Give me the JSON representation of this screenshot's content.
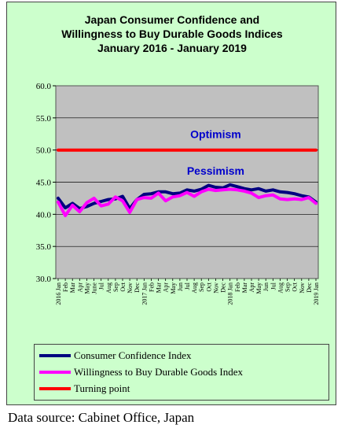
{
  "chart_data": {
    "type": "line",
    "title": [
      "Japan Consumer Confidence and",
      "Willingness to Buy Durable Goods Indices",
      "January 2016 - January 2019"
    ],
    "ylim": [
      30,
      60
    ],
    "yticks": [
      "30.0",
      "35.0",
      "40.0",
      "45.0",
      "50.0",
      "55.0",
      "60.0"
    ],
    "x": [
      "2016 Jan",
      "Feb",
      "Mar",
      "Apr",
      "May",
      "June",
      "Jul",
      "Aug",
      "Sep",
      "Oct",
      "Nov",
      "Dec",
      "2017 Jan",
      "Feb",
      "Mar",
      "Apr",
      "May",
      "Jun",
      "Jul",
      "Aug",
      "Sep",
      "Oct",
      "Nov",
      "Dec",
      "2018 Jan",
      "Feb",
      "Mar",
      "Apr",
      "May",
      "Jun",
      "Jul",
      "Aug",
      "Sep",
      "Oct",
      "Nov",
      "Dec",
      "2019 Jan"
    ],
    "series": [
      {
        "name": "Consumer Confidence Index",
        "color": "#000080",
        "values": [
          42.5,
          41.0,
          41.7,
          40.9,
          41.2,
          41.7,
          42.0,
          42.3,
          42.4,
          42.8,
          40.9,
          42.3,
          43.1,
          43.2,
          43.5,
          43.5,
          43.2,
          43.3,
          43.8,
          43.6,
          43.9,
          44.5,
          44.2,
          44.1,
          44.6,
          44.3,
          44.0,
          43.8,
          44.0,
          43.6,
          43.8,
          43.5,
          43.4,
          43.2,
          42.9,
          42.7,
          41.9
        ]
      },
      {
        "name": "Willingness to Buy Durable Goods Index",
        "color": "#ff00ff",
        "values": [
          41.9,
          39.8,
          41.4,
          40.4,
          41.8,
          42.5,
          41.3,
          41.6,
          42.7,
          42.1,
          40.3,
          42.3,
          42.6,
          42.5,
          43.3,
          42.1,
          42.7,
          42.9,
          43.4,
          42.8,
          43.5,
          43.9,
          43.7,
          43.8,
          43.9,
          43.8,
          43.6,
          43.3,
          42.6,
          42.9,
          43.0,
          42.4,
          42.3,
          42.4,
          42.3,
          42.6,
          41.7
        ]
      },
      {
        "name": "Turning point",
        "color": "#ff0000",
        "values": [
          50,
          50,
          50,
          50,
          50,
          50,
          50,
          50,
          50,
          50,
          50,
          50,
          50,
          50,
          50,
          50,
          50,
          50,
          50,
          50,
          50,
          50,
          50,
          50,
          50,
          50,
          50,
          50,
          50,
          50,
          50,
          50,
          50,
          50,
          50,
          50,
          50
        ]
      }
    ],
    "annotations": [
      {
        "text": "Optimism",
        "x_index": 22,
        "y": 52.5,
        "color": "#0000cc"
      },
      {
        "text": "Pessimism",
        "x_index": 22,
        "y": 46.8,
        "color": "#0000cc"
      }
    ],
    "grid": true,
    "legend_position": "bottom"
  },
  "source": "Data source: Cabinet Office, Japan"
}
